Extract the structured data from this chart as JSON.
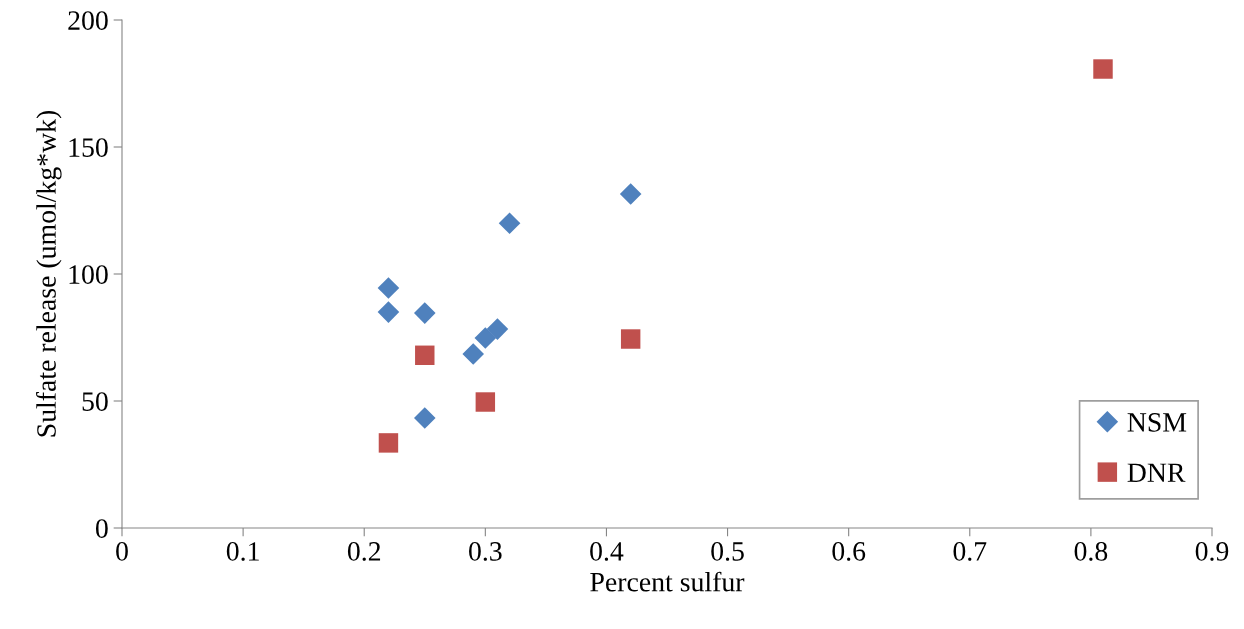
{
  "chart_data": {
    "type": "scatter",
    "xlabel": "Percent sulfur",
    "ylabel": "Sulfate release (umol/kg*wk)",
    "xlim": [
      0,
      0.9
    ],
    "xticks": [
      0,
      0.1,
      0.2,
      0.3,
      0.4,
      0.5,
      0.6,
      0.7,
      0.8,
      0.9
    ],
    "ylim": [
      0,
      200
    ],
    "yticks": [
      0,
      50,
      100,
      150,
      200
    ],
    "grid": false,
    "legend": "bottom right",
    "series": [
      {
        "name": "NSM",
        "color": "#4f81bd",
        "marker": "diamond",
        "x": [
          0.22,
          0.22,
          0.25,
          0.25,
          0.29,
          0.3,
          0.31,
          0.32,
          0.42
        ],
        "values": [
          94.5,
          85,
          84.6,
          43.3,
          68.5,
          74.8,
          78.3,
          120,
          131.5
        ]
      },
      {
        "name": "DNR",
        "color": "#c0504d",
        "marker": "square",
        "x": [
          0.22,
          0.25,
          0.3,
          0.42,
          0.81
        ],
        "values": [
          33.5,
          68,
          49.6,
          74.4,
          180.7
        ]
      }
    ]
  }
}
